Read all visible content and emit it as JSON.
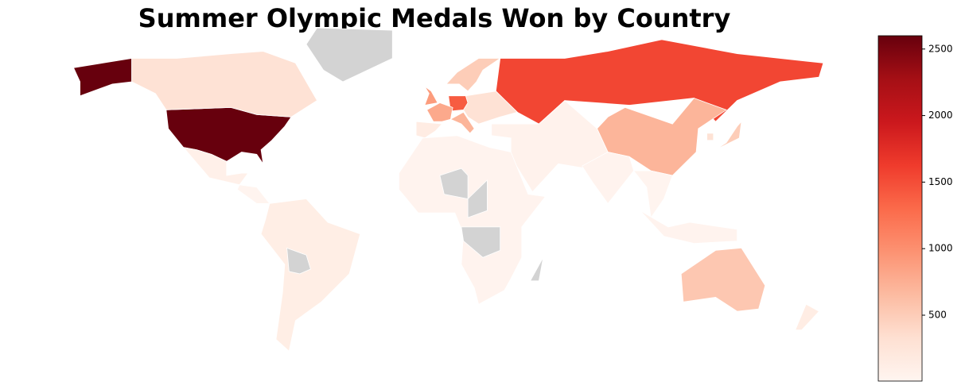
{
  "chart_data": {
    "type": "choropleth",
    "title": "Summer Olympic Medals Won by Country",
    "values": [
      2600,
      2600,
      300,
      80,
      20,
      120,
      null,
      null,
      1550,
      700,
      1400,
      800,
      900,
      150,
      700,
      500,
      300,
      50,
      30,
      20,
      500,
      300,
      30,
      550,
      130,
      30,
      null,
      null,
      null,
      null
    ],
    "colormap": "Reds",
    "missing_color": "#d3d3d3",
    "clim": [
      5,
      2600
    ],
    "cticks": [
      500,
      1000,
      1500,
      2000,
      2500
    ]
  }
}
